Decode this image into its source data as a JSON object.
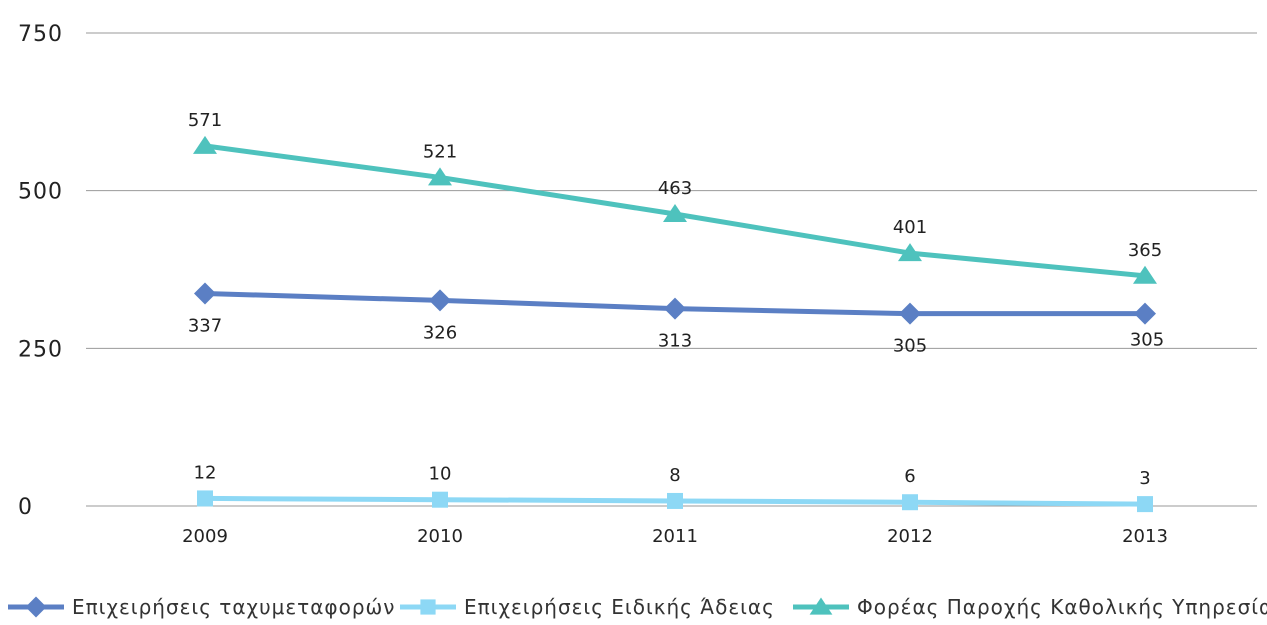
{
  "chart_data": {
    "type": "line",
    "title": "",
    "xlabel": "",
    "ylabel": "",
    "categories": [
      "2009",
      "2010",
      "2011",
      "2012",
      "2013"
    ],
    "ylim": [
      0,
      750
    ],
    "yticks": [
      0,
      250,
      500,
      750
    ],
    "grid": true,
    "legend_position": "bottom",
    "series": [
      {
        "name": "Επιχειρήσεις ταχυμεταφορών",
        "values": [
          337,
          326,
          313,
          305,
          305
        ],
        "color": "#5b7fc4",
        "marker": "diamond",
        "label_position": "below"
      },
      {
        "name": "Επιχειρήσεις Ειδικής Άδειας",
        "values": [
          12,
          10,
          8,
          6,
          3
        ],
        "color": "#8dd8f5",
        "marker": "square",
        "label_position": "above"
      },
      {
        "name": "Φορέας Παροχής Καθολικής Υπηρεσίας",
        "values": [
          571,
          521,
          463,
          401,
          365
        ],
        "color": "#4ec2bd",
        "marker": "triangle",
        "label_position": "above"
      }
    ]
  }
}
